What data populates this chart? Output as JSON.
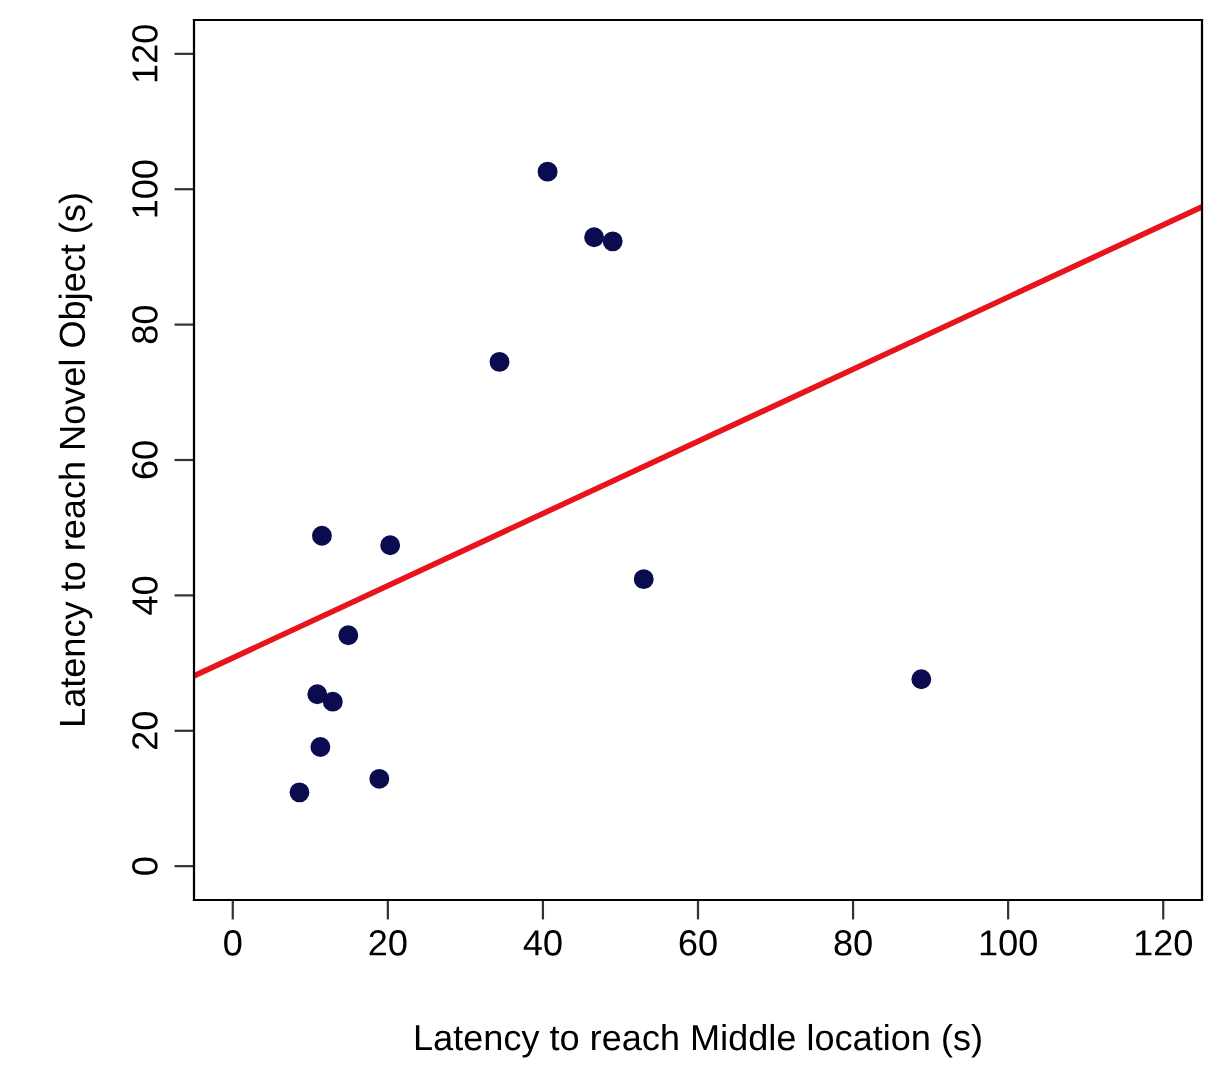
{
  "chart_data": {
    "type": "scatter",
    "xlabel": "Latency to reach Middle location (s)",
    "ylabel": "Latency to reach Novel Object (s)",
    "series": [
      {
        "marker": "circle",
        "color": "#0b0b4f",
        "x": [
          40.6,
          46.6,
          49.0,
          34.4,
          11.5,
          20.3,
          53.0,
          14.9,
          10.9,
          12.9,
          11.3,
          18.9,
          8.6,
          88.8
        ],
        "values": [
          102.6,
          92.9,
          92.3,
          74.5,
          48.8,
          47.4,
          42.4,
          34.1,
          25.4,
          24.3,
          17.6,
          12.9,
          10.9,
          27.6
        ]
      },
      {
        "type": "line",
        "color": "#e8141b",
        "x": [
          -5,
          125
        ],
        "values": [
          28.1,
          97.4
        ]
      }
    ],
    "xlim": [
      -5,
      125
    ],
    "ylim": [
      -5,
      125
    ],
    "xticks": [
      0,
      20,
      40,
      60,
      80,
      100,
      120
    ],
    "yticks": [
      0,
      20,
      40,
      60,
      80,
      100,
      120
    ],
    "grid": false,
    "legend": false
  }
}
